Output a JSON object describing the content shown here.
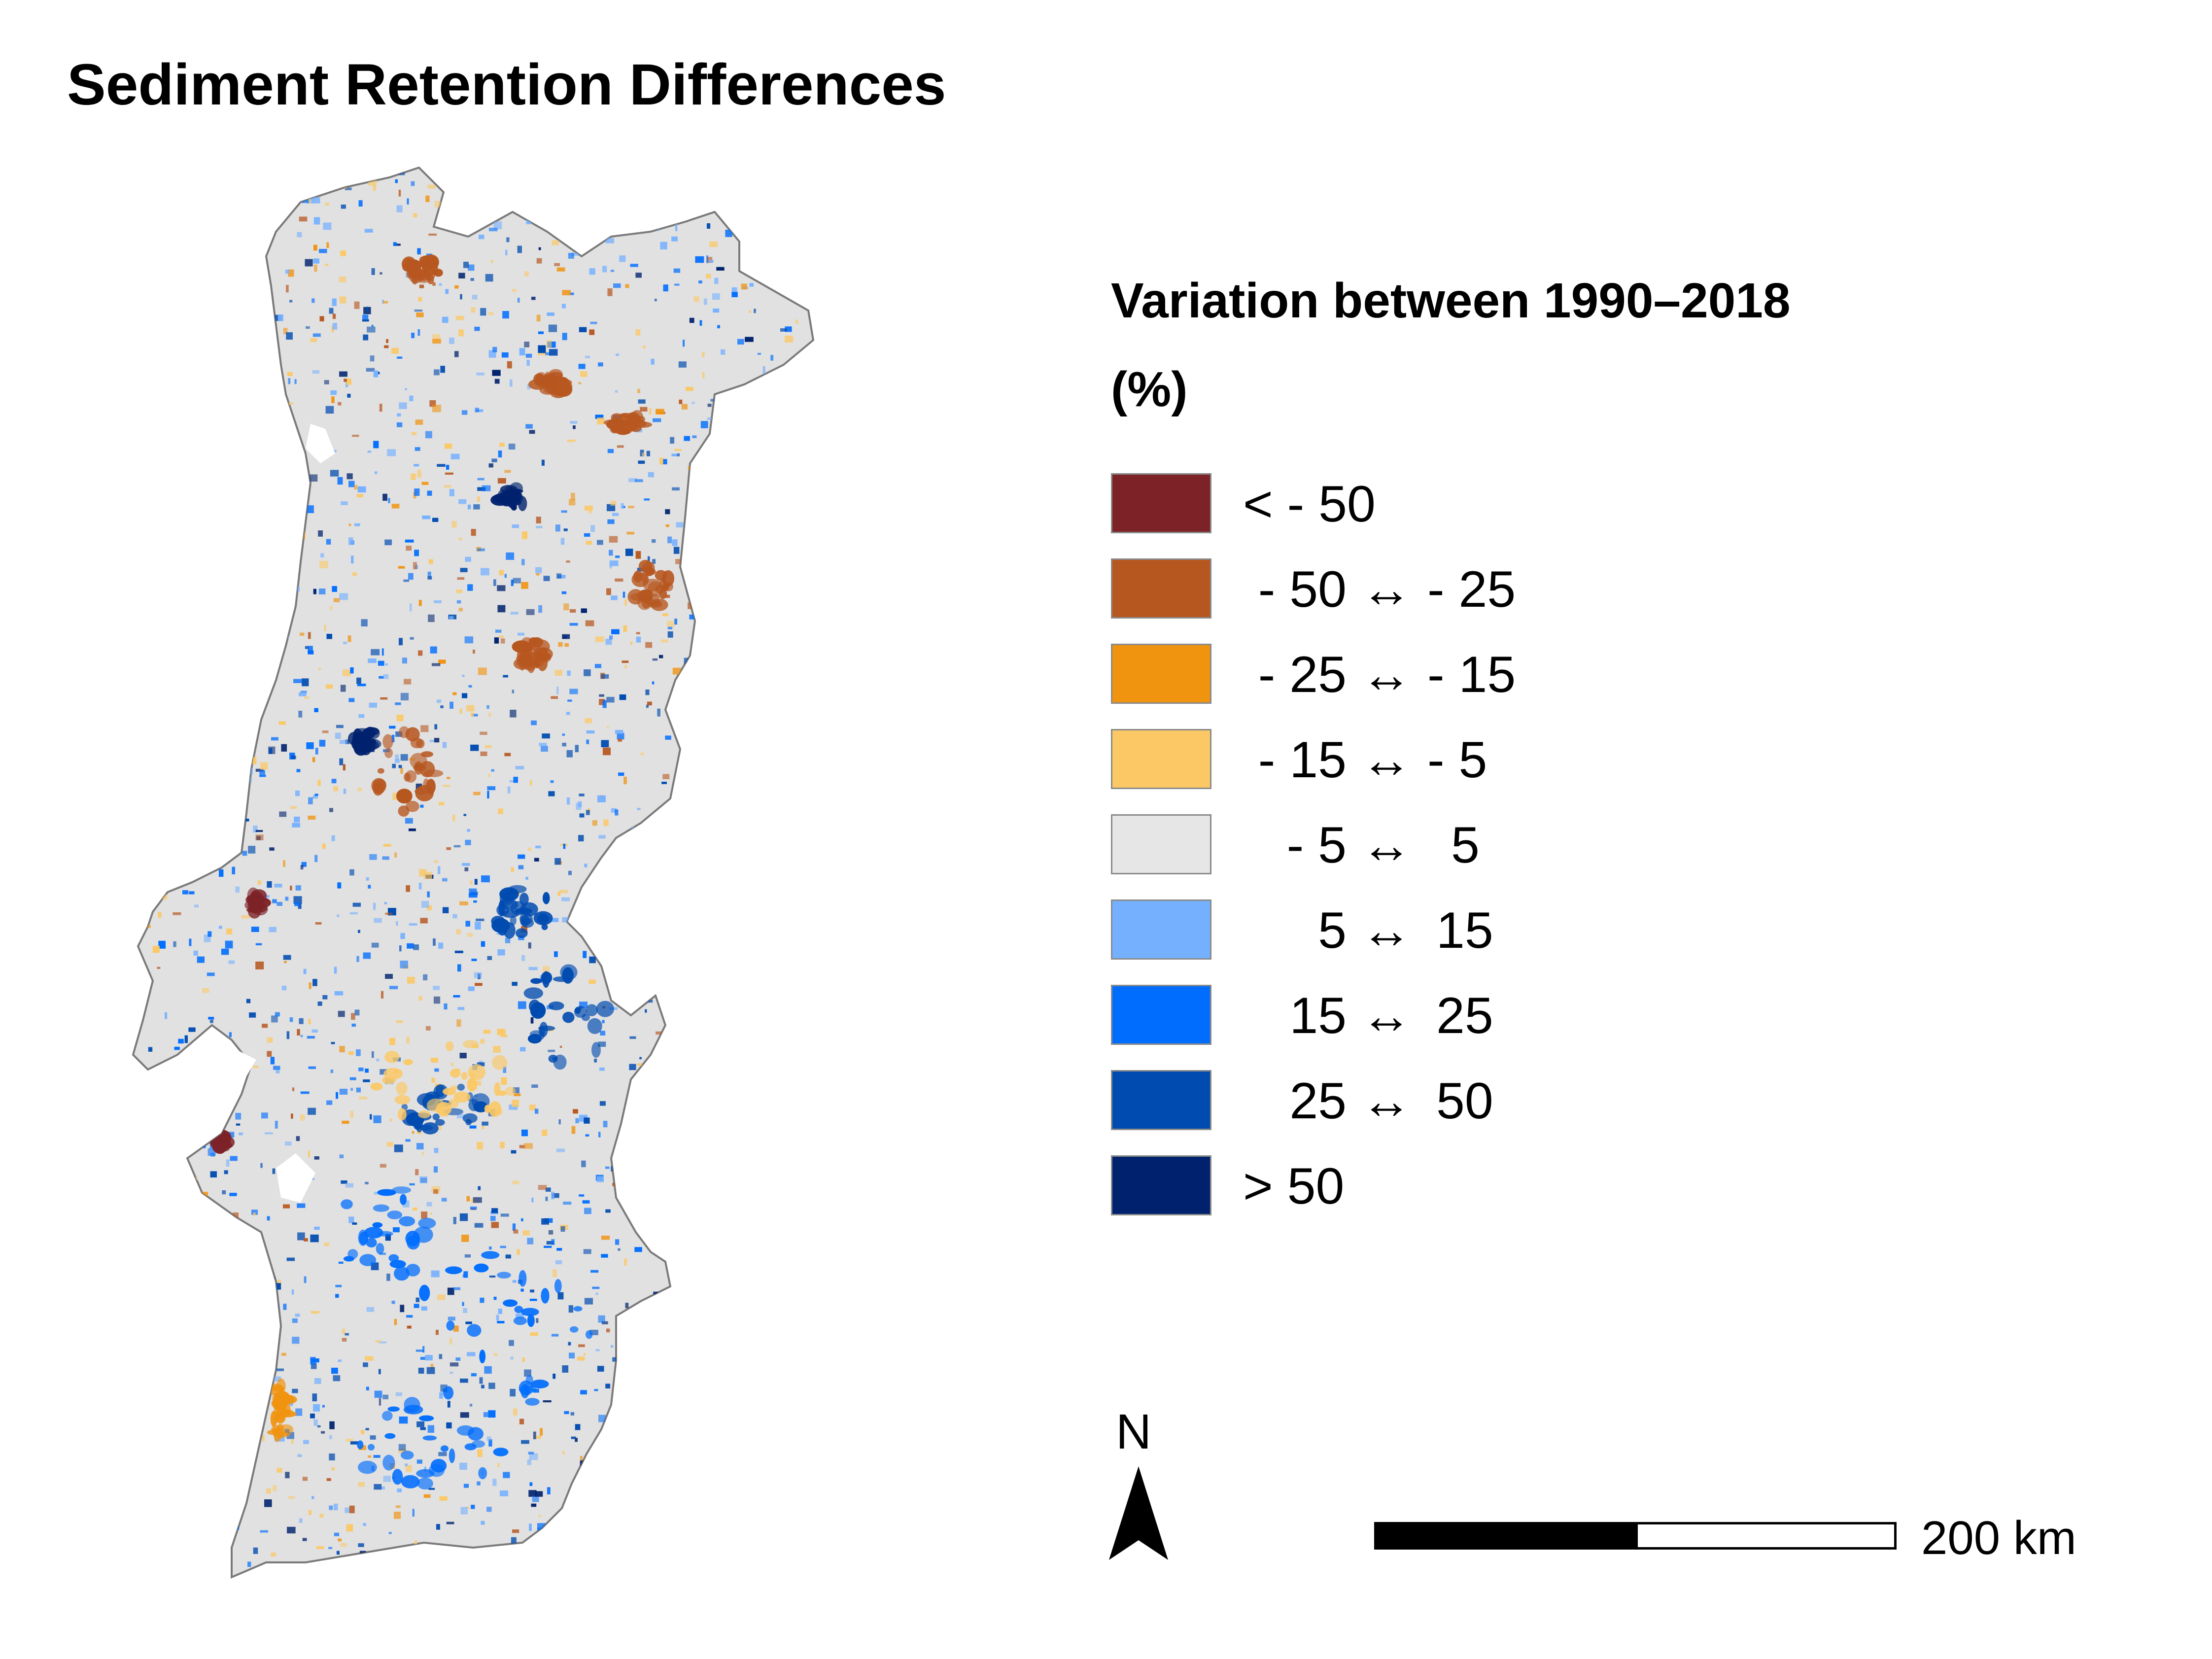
{
  "title": "Sediment Retention Differences",
  "legend": {
    "title_line1": "Variation between 1990–2018",
    "title_line2": "(%)",
    "items": [
      {
        "color": "#7d2328",
        "label": "< - 50"
      },
      {
        "color": "#b75720",
        "low": "- 50",
        "arrow": "↔",
        "high": "- 25"
      },
      {
        "color": "#f0930f",
        "low": "- 25",
        "arrow": "↔",
        "high": "- 15"
      },
      {
        "color": "#fbc865",
        "low": "- 15",
        "arrow": "↔",
        "high": "- 5"
      },
      {
        "color": "#e6e6e6",
        "low": "- 5",
        "arrow": "↔",
        "high": "5"
      },
      {
        "color": "#75b0ff",
        "low": "5",
        "arrow": "↔",
        "high": "15"
      },
      {
        "color": "#006dfe",
        "low": "15",
        "arrow": "↔",
        "high": "25"
      },
      {
        "color": "#004bb0",
        "low": "25",
        "arrow": "↔",
        "high": "50"
      },
      {
        "color": "#00226e",
        "label": "> 50"
      }
    ]
  },
  "north_arrow": {
    "label": "N"
  },
  "scale_bar": {
    "label": "200 km"
  },
  "map": {
    "region_fill": "#e1e1e1",
    "outline": "#7a7a7a"
  }
}
